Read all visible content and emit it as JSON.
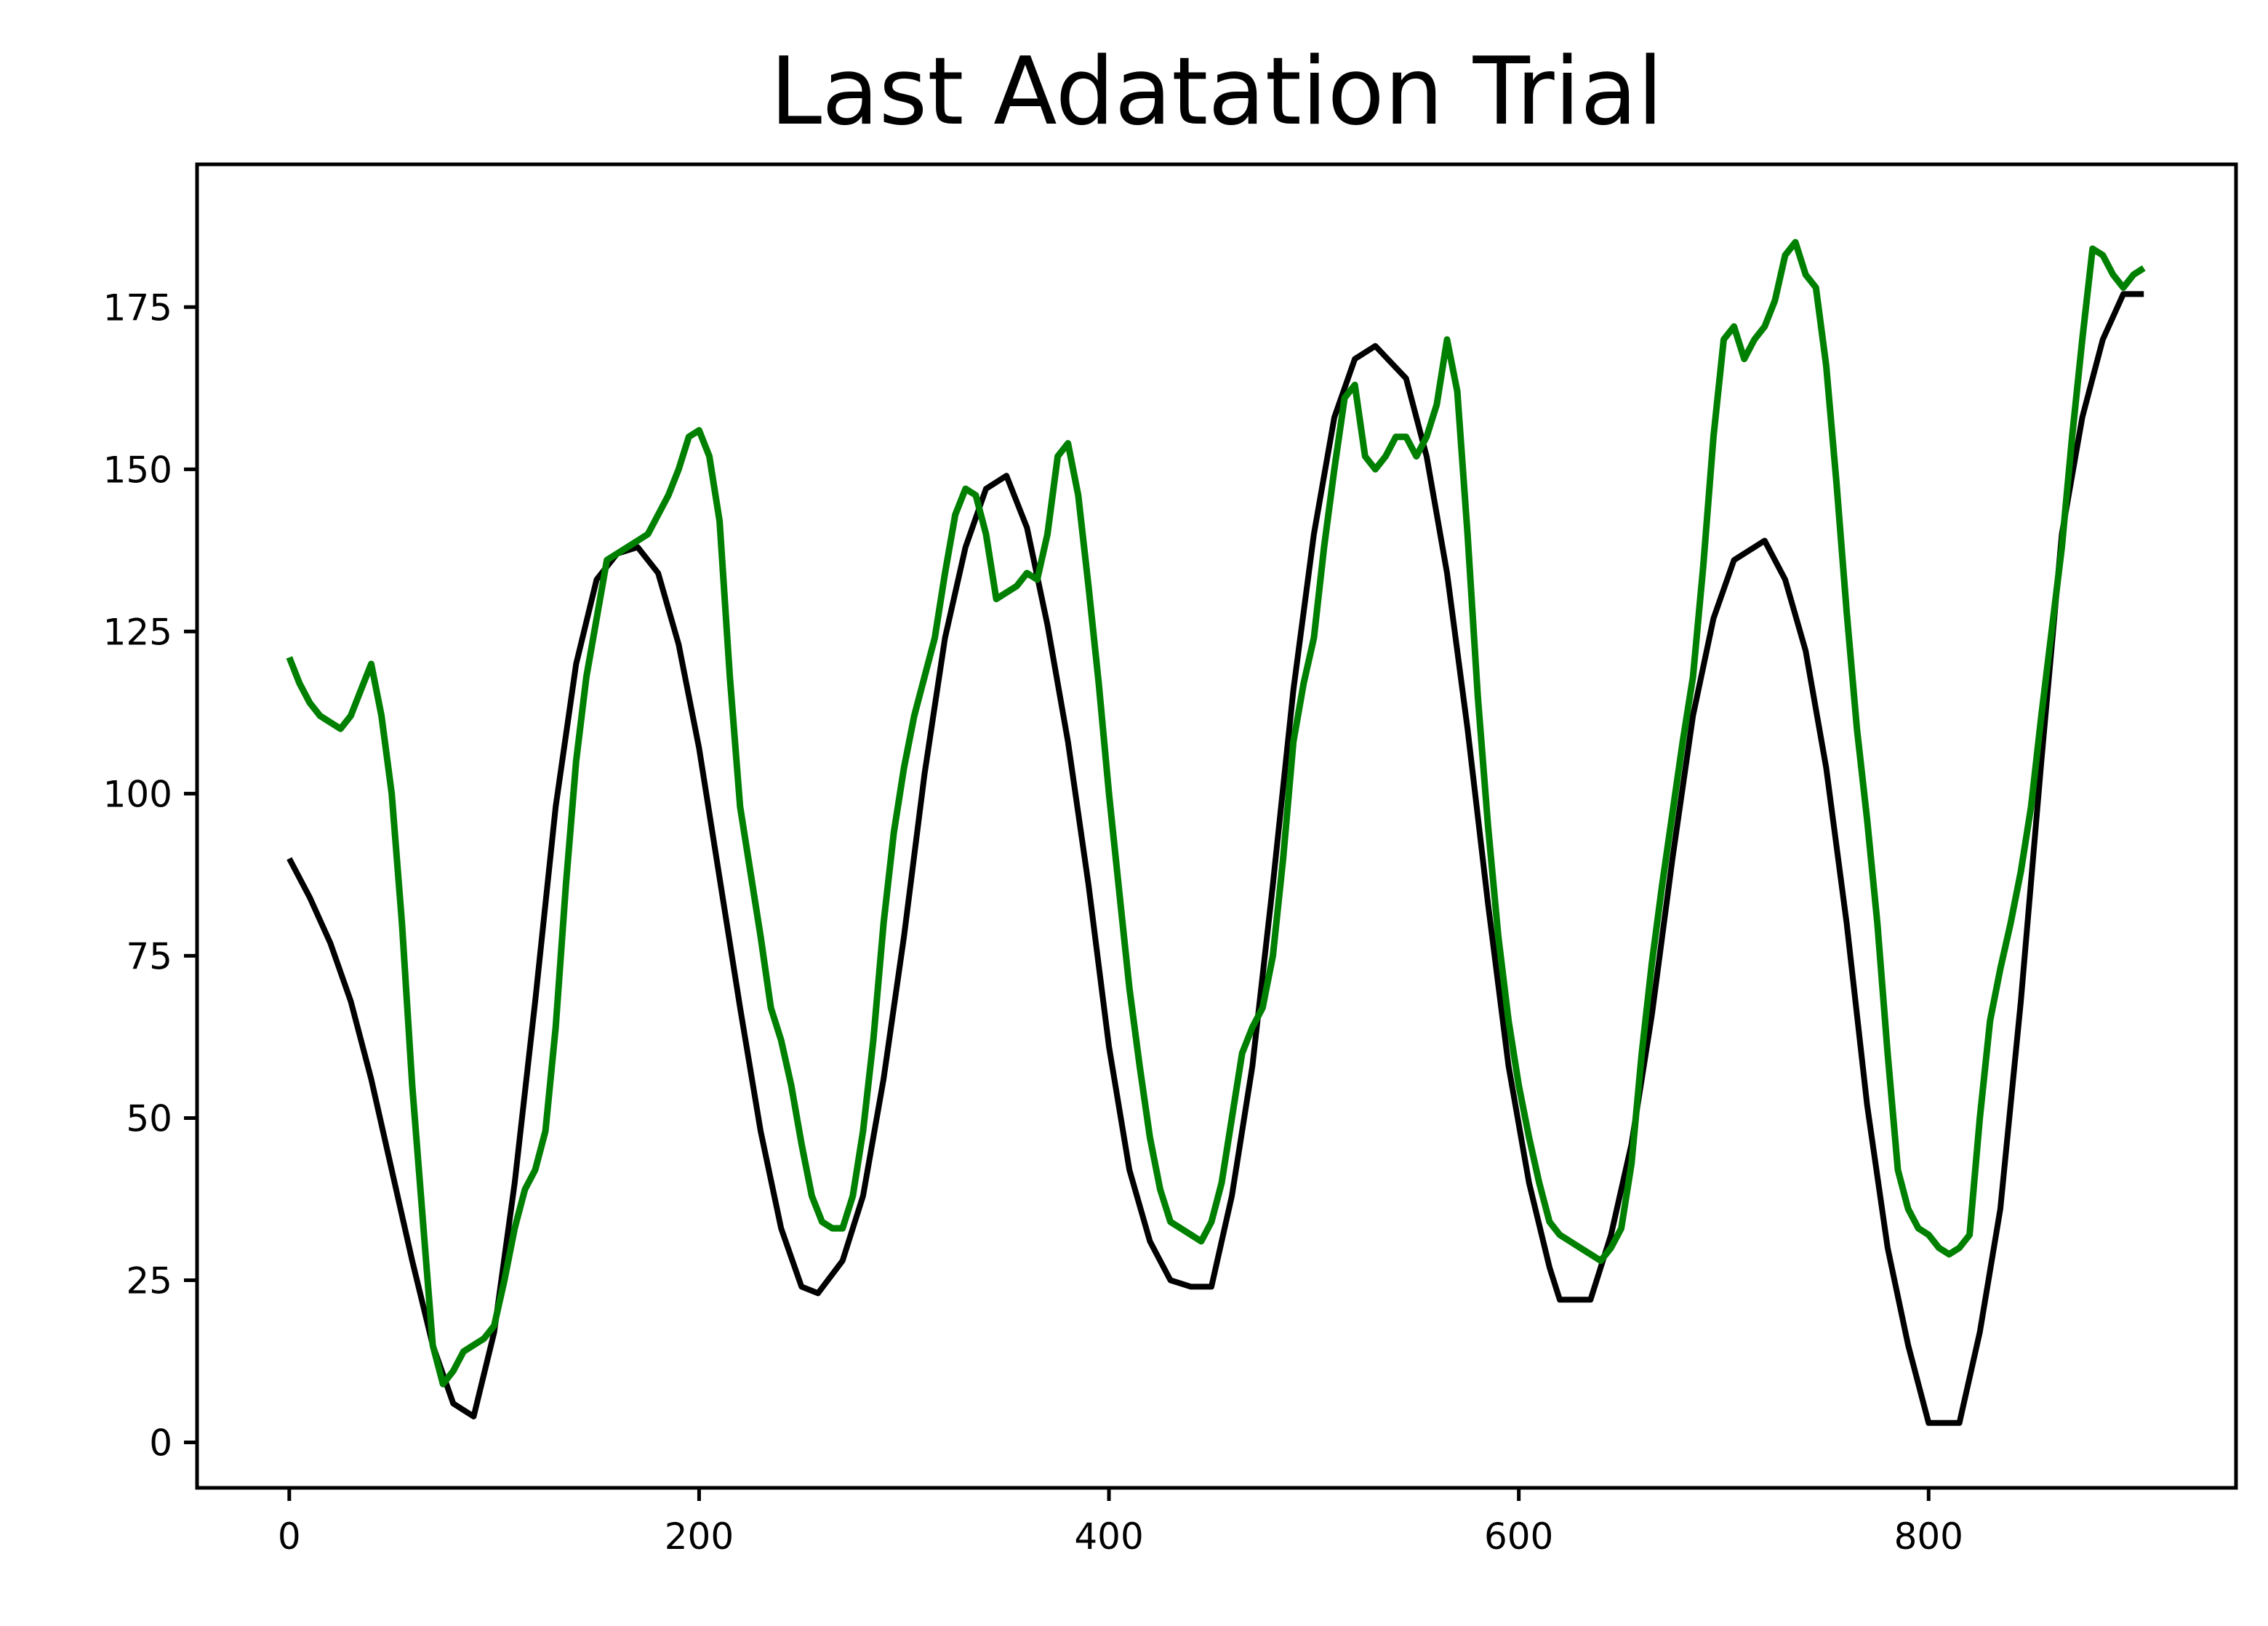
{
  "chart_data": {
    "type": "line",
    "title": "Last Adatation Trial",
    "xlabel": "",
    "ylabel": "",
    "xlim": [
      -45,
      950
    ],
    "ylim": [
      -7,
      197
    ],
    "xticks": [
      0,
      200,
      400,
      600,
      800
    ],
    "yticks": [
      0,
      25,
      50,
      75,
      100,
      125,
      150,
      175
    ],
    "grid": false,
    "legend": "none",
    "series": [
      {
        "color": "#000000",
        "x": [
          0,
          10,
          20,
          30,
          40,
          50,
          60,
          70,
          80,
          90,
          100,
          110,
          120,
          130,
          140,
          150,
          160,
          170,
          180,
          190,
          200,
          210,
          220,
          230,
          240,
          250,
          258,
          270,
          280,
          290,
          300,
          310,
          320,
          330,
          340,
          350,
          360,
          370,
          380,
          390,
          400,
          410,
          420,
          430,
          440,
          450,
          460,
          470,
          480,
          490,
          500,
          510,
          520,
          530,
          545,
          555,
          565,
          575,
          585,
          595,
          605,
          615,
          620,
          635,
          645,
          655,
          665,
          675,
          685,
          695,
          705,
          720,
          730,
          740,
          750,
          760,
          770,
          780,
          790,
          800,
          815,
          825,
          835,
          845,
          855,
          865,
          875,
          885,
          895,
          905
        ],
        "y": [
          90,
          84,
          77,
          68,
          56,
          42,
          28,
          15,
          6,
          4,
          17,
          40,
          68,
          98,
          120,
          133,
          137,
          138,
          134,
          123,
          107,
          87,
          67,
          48,
          33,
          24,
          23,
          28,
          38,
          56,
          78,
          103,
          124,
          138,
          147,
          149,
          141,
          126,
          108,
          86,
          61,
          42,
          31,
          25,
          24,
          24,
          38,
          58,
          86,
          116,
          140,
          158,
          167,
          169,
          164,
          152,
          134,
          110,
          83,
          58,
          40,
          27,
          22,
          22,
          32,
          46,
          66,
          90,
          112,
          127,
          136,
          139,
          133,
          122,
          104,
          80,
          52,
          30,
          15,
          3,
          3,
          17,
          36,
          68,
          105,
          140,
          158,
          170,
          177,
          177
        ]
      },
      {
        "color": "#008000",
        "x": [
          0,
          5,
          10,
          15,
          20,
          25,
          30,
          35,
          40,
          45,
          50,
          55,
          60,
          65,
          70,
          75,
          80,
          85,
          90,
          95,
          100,
          105,
          110,
          115,
          120,
          125,
          130,
          135,
          140,
          145,
          150,
          155,
          160,
          165,
          170,
          175,
          180,
          185,
          190,
          195,
          200,
          205,
          210,
          215,
          220,
          225,
          230,
          235,
          240,
          245,
          250,
          255,
          260,
          265,
          270,
          275,
          280,
          285,
          290,
          295,
          300,
          305,
          310,
          315,
          320,
          325,
          330,
          335,
          340,
          345,
          350,
          355,
          360,
          365,
          370,
          375,
          380,
          385,
          390,
          395,
          400,
          405,
          410,
          415,
          420,
          425,
          430,
          435,
          440,
          445,
          450,
          455,
          460,
          465,
          470,
          475,
          480,
          485,
          490,
          495,
          500,
          505,
          510,
          515,
          520,
          525,
          530,
          535,
          540,
          545,
          550,
          555,
          560,
          565,
          570,
          575,
          580,
          585,
          590,
          595,
          600,
          605,
          610,
          615,
          620,
          625,
          630,
          635,
          640,
          645,
          650,
          655,
          660,
          665,
          670,
          675,
          680,
          685,
          690,
          695,
          700,
          705,
          710,
          715,
          720,
          725,
          730,
          735,
          740,
          745,
          750,
          755,
          760,
          765,
          770,
          775,
          780,
          785,
          790,
          795,
          800,
          805,
          810,
          815,
          820,
          825,
          830,
          835,
          840,
          845,
          850,
          855,
          860,
          865,
          870,
          875,
          880,
          885,
          890,
          895,
          900,
          905
        ],
        "y": [
          121,
          117,
          114,
          112,
          111,
          110,
          112,
          116,
          120,
          112,
          100,
          80,
          55,
          35,
          15,
          9,
          11,
          14,
          15,
          16,
          18,
          25,
          33,
          39,
          42,
          48,
          64,
          86,
          105,
          118,
          127,
          136,
          137,
          138,
          139,
          140,
          143,
          146,
          150,
          155,
          156,
          152,
          142,
          118,
          98,
          88,
          78,
          67,
          62,
          55,
          46,
          38,
          34,
          33,
          33,
          38,
          48,
          62,
          80,
          94,
          104,
          112,
          118,
          124,
          134,
          143,
          147,
          146,
          140,
          130,
          131,
          132,
          134,
          133,
          140,
          152,
          154,
          146,
          132,
          117,
          100,
          85,
          70,
          58,
          47,
          39,
          34,
          33,
          32,
          31,
          34,
          40,
          50,
          60,
          64,
          67,
          75,
          90,
          108,
          117,
          124,
          138,
          150,
          161,
          163,
          152,
          150,
          152,
          155,
          155,
          152,
          155,
          160,
          170,
          162,
          140,
          115,
          95,
          78,
          65,
          55,
          47,
          40,
          34,
          32,
          31,
          30,
          29,
          28,
          30,
          33,
          43,
          60,
          74,
          86,
          97,
          108,
          118,
          135,
          155,
          170,
          172,
          167,
          170,
          172,
          176,
          183,
          185,
          180,
          178,
          166,
          148,
          128,
          110,
          96,
          80,
          60,
          42,
          36,
          33,
          32,
          30,
          29,
          30,
          32,
          50,
          65,
          73,
          80,
          88,
          98,
          112,
          125,
          138,
          155,
          170,
          184,
          183,
          180,
          178,
          180,
          181
        ]
      }
    ]
  }
}
